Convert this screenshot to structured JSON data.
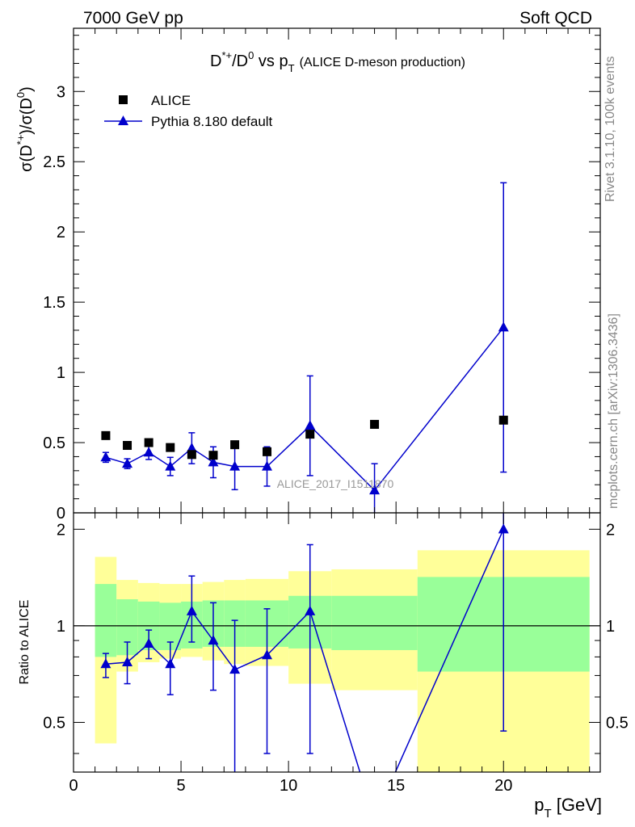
{
  "header": {
    "left": "7000 GeV pp",
    "right": "Soft QCD"
  },
  "title": {
    "main": "D*+/D0 vs pT",
    "sub": "(ALICE D-meson production)"
  },
  "side_text": {
    "rivet": "Rivet 3.1.10,  100k events",
    "mcplots": "mcplots.cern.ch [arXiv:1306.3436]"
  },
  "watermark": "ALICE_2017_I1511870",
  "axes": {
    "upper_ylabel": "σ(D*+)/σ(D0)",
    "lower_ylabel": "Ratio to ALICE",
    "xlabel": "pT [GeV]"
  },
  "colors": {
    "data": "#000000",
    "mc": "#0000cc",
    "band_inner": "#99ff99",
    "band_outer": "#ffff99",
    "side_text": "#888888"
  },
  "chart_data": [
    {
      "type": "scatter",
      "panel": "main",
      "xlim": [
        0,
        24.5
      ],
      "ylim": [
        0,
        3.45
      ],
      "yticks": [
        0,
        0.5,
        1,
        1.5,
        2,
        2.5,
        3
      ],
      "xticks": [
        0,
        5,
        10,
        15,
        20
      ],
      "legend_position": "top-left",
      "series": [
        {
          "name": "ALICE",
          "marker": "square",
          "x": [
            1.5,
            2.5,
            3.5,
            4.5,
            5.5,
            6.5,
            7.5,
            9,
            11,
            14,
            20
          ],
          "y": [
            0.55,
            0.48,
            0.5,
            0.465,
            0.415,
            0.41,
            0.485,
            0.435,
            0.56,
            0.63,
            0.66
          ]
        },
        {
          "name": "Pythia 8.180 default",
          "marker": "triangle",
          "line": true,
          "x": [
            1.5,
            2.5,
            3.5,
            4.5,
            5.5,
            6.5,
            7.5,
            9,
            11,
            14,
            20
          ],
          "y": [
            0.395,
            0.35,
            0.43,
            0.33,
            0.46,
            0.36,
            0.33,
            0.33,
            0.62,
            0.16,
            1.32
          ],
          "yerr": [
            0.035,
            0.035,
            0.05,
            0.065,
            0.11,
            0.11,
            0.165,
            0.14,
            0.355,
            0.19,
            1.03
          ]
        }
      ]
    },
    {
      "type": "line",
      "panel": "ratio",
      "xlim": [
        0,
        24.5
      ],
      "ylim": [
        0.35,
        2.25
      ],
      "yticks": [
        0.5,
        1,
        2
      ],
      "xticks": [
        0,
        5,
        10,
        15,
        20
      ],
      "reference": 1,
      "bands": {
        "edges": [
          1,
          2,
          3,
          4,
          5,
          6,
          7,
          8,
          10,
          12,
          16,
          24
        ],
        "inner_lo": [
          0.8,
          0.81,
          0.84,
          0.84,
          0.85,
          0.86,
          0.86,
          0.86,
          0.85,
          0.84,
          0.72
        ],
        "inner_hi": [
          1.35,
          1.21,
          1.19,
          1.18,
          1.19,
          1.2,
          1.2,
          1.2,
          1.24,
          1.24,
          1.42
        ],
        "outer_lo": [
          0.43,
          0.72,
          0.77,
          0.79,
          0.8,
          0.78,
          0.76,
          0.75,
          0.66,
          0.63,
          0.35
        ],
        "outer_hi": [
          1.64,
          1.39,
          1.36,
          1.35,
          1.35,
          1.37,
          1.39,
          1.4,
          1.48,
          1.5,
          1.72
        ]
      },
      "series": [
        {
          "name": "Pythia 8.180 default",
          "x": [
            1.5,
            2.5,
            3.5,
            4.5,
            5.5,
            6.5,
            7.5,
            9,
            11,
            14,
            20
          ],
          "y": [
            0.76,
            0.77,
            0.88,
            0.76,
            1.11,
            0.9,
            0.73,
            0.81,
            1.11,
            0.25,
            2.0
          ],
          "ylo": [
            0.69,
            0.66,
            0.79,
            0.61,
            0.89,
            0.63,
            0.3,
            0.4,
            0.4,
            0.1,
            0.47
          ],
          "yhi": [
            0.82,
            0.89,
            0.97,
            0.89,
            1.43,
            1.18,
            1.04,
            1.13,
            1.79,
            0.5,
            2.4
          ]
        }
      ]
    }
  ]
}
